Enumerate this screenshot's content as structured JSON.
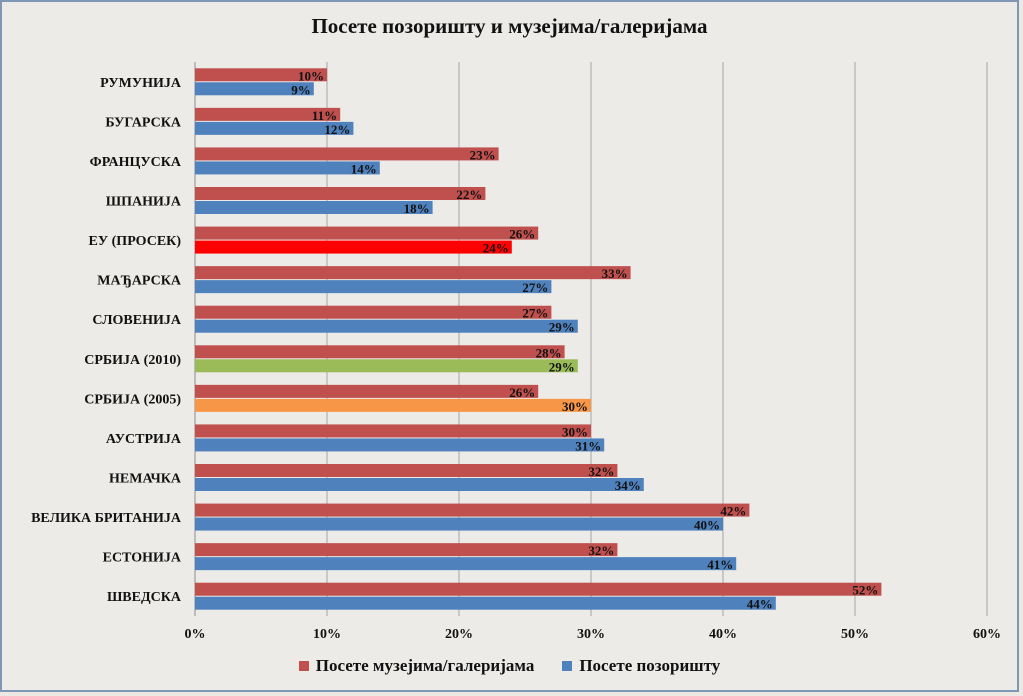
{
  "chart_data": {
    "type": "bar",
    "orientation": "horizontal",
    "title": "Посете позоришту и музејима/галеријама",
    "categories": [
      "РУМУНИЈА",
      "БУГАРСКА",
      "ФРАНЦУСКА",
      "ШПАНИЈА",
      "ЕУ (ПРОСЕК)",
      "МАЂАРСКА",
      "СЛОВЕНИЈА",
      "СРБИЈА (2010)",
      "СРБИЈА (2005)",
      "АУСТРИЈА",
      "НЕМАЧКА",
      "ВЕЛИКА БРИТАНИЈА",
      "ЕСТОНИЈА",
      "ШВЕДСКА"
    ],
    "series": [
      {
        "name": "Посете музејима/галеријама",
        "color": "#c0504d",
        "values": [
          10,
          11,
          23,
          22,
          26,
          33,
          27,
          28,
          26,
          30,
          32,
          42,
          32,
          52
        ]
      },
      {
        "name": "Посете позоришту",
        "color": "#4f81bd",
        "values": [
          9,
          12,
          14,
          18,
          24,
          27,
          29,
          29,
          30,
          31,
          34,
          40,
          41,
          44
        ],
        "highlight": {
          "ЕУ (ПРОСЕК)": "#ff0000",
          "СРБИЈА (2010)": "#9bbb59",
          "СРБИЈА (2005)": "#f79646"
        }
      }
    ],
    "xlim": [
      0,
      60
    ],
    "xticks": [
      0,
      10,
      20,
      30,
      40,
      50,
      60
    ],
    "tick_suffix": "%",
    "legend_position": "bottom",
    "grid": true
  }
}
